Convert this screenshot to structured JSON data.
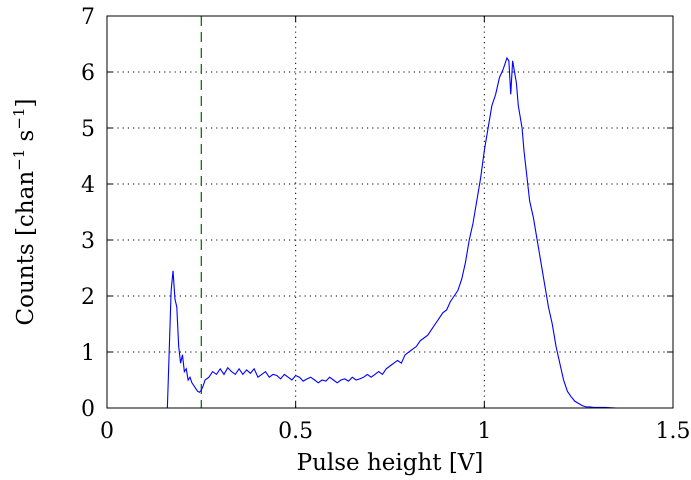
{
  "chart_data": {
    "type": "line",
    "title": "",
    "xlabel": "Pulse height [V]",
    "ylabel": "Counts [chan",
    "ylabel_parts": [
      "Counts [chan",
      "−1",
      " s",
      "−1",
      "]"
    ],
    "xlim": [
      0,
      1.5
    ],
    "ylim": [
      0,
      7
    ],
    "xticks": [
      0,
      0.5,
      1,
      1.5
    ],
    "xtick_labels": [
      "0",
      "0.5",
      "1",
      "1.5"
    ],
    "yticks": [
      0,
      1,
      2,
      3,
      4,
      5,
      6,
      7
    ],
    "ytick_labels": [
      "0",
      "1",
      "2",
      "3",
      "4",
      "5",
      "6",
      "7"
    ],
    "grid": "dotted",
    "threshold_x": 0.25,
    "colors": {
      "series": "#0000ff",
      "threshold": "#008000",
      "axes": "#000000"
    },
    "series": [
      {
        "x": [
          0.0,
          0.16,
          0.17,
          0.175,
          0.18,
          0.185,
          0.19,
          0.195,
          0.2,
          0.205,
          0.21,
          0.215,
          0.22,
          0.225,
          0.23,
          0.235,
          0.24,
          0.245,
          0.25,
          0.255,
          0.26,
          0.27,
          0.28,
          0.29,
          0.3,
          0.31,
          0.32,
          0.33,
          0.34,
          0.35,
          0.36,
          0.37,
          0.38,
          0.39,
          0.4,
          0.41,
          0.42,
          0.43,
          0.44,
          0.45,
          0.46,
          0.47,
          0.48,
          0.49,
          0.5,
          0.51,
          0.52,
          0.53,
          0.54,
          0.55,
          0.56,
          0.57,
          0.58,
          0.59,
          0.6,
          0.61,
          0.62,
          0.63,
          0.64,
          0.65,
          0.66,
          0.67,
          0.68,
          0.69,
          0.7,
          0.71,
          0.72,
          0.73,
          0.74,
          0.75,
          0.76,
          0.77,
          0.78,
          0.79,
          0.8,
          0.81,
          0.82,
          0.83,
          0.84,
          0.85,
          0.86,
          0.87,
          0.88,
          0.89,
          0.9,
          0.91,
          0.92,
          0.93,
          0.94,
          0.95,
          0.96,
          0.97,
          0.98,
          0.99,
          1.0,
          1.01,
          1.02,
          1.03,
          1.04,
          1.05,
          1.06,
          1.065,
          1.07,
          1.075,
          1.08,
          1.085,
          1.09,
          1.095,
          1.1,
          1.105,
          1.11,
          1.115,
          1.12,
          1.13,
          1.14,
          1.15,
          1.16,
          1.17,
          1.18,
          1.19,
          1.2,
          1.21,
          1.22,
          1.23,
          1.24,
          1.25,
          1.26,
          1.27,
          1.28,
          1.29,
          1.3,
          1.32,
          1.35,
          1.4,
          1.45,
          1.5
        ],
        "y": [
          0.0,
          0.0,
          2.1,
          2.45,
          1.95,
          1.8,
          1.1,
          0.8,
          0.95,
          0.65,
          0.7,
          0.5,
          0.55,
          0.45,
          0.4,
          0.35,
          0.3,
          0.28,
          0.32,
          0.4,
          0.5,
          0.55,
          0.65,
          0.6,
          0.7,
          0.6,
          0.72,
          0.65,
          0.6,
          0.7,
          0.6,
          0.68,
          0.62,
          0.7,
          0.55,
          0.6,
          0.65,
          0.55,
          0.6,
          0.58,
          0.52,
          0.6,
          0.55,
          0.5,
          0.58,
          0.55,
          0.48,
          0.52,
          0.55,
          0.5,
          0.45,
          0.5,
          0.48,
          0.55,
          0.5,
          0.45,
          0.5,
          0.52,
          0.48,
          0.55,
          0.5,
          0.52,
          0.55,
          0.6,
          0.55,
          0.6,
          0.65,
          0.6,
          0.7,
          0.75,
          0.8,
          0.85,
          0.8,
          0.95,
          1.0,
          1.05,
          1.1,
          1.2,
          1.25,
          1.3,
          1.4,
          1.5,
          1.6,
          1.7,
          1.75,
          1.9,
          2.0,
          2.1,
          2.3,
          2.6,
          3.0,
          3.3,
          3.7,
          4.1,
          4.6,
          5.0,
          5.4,
          5.6,
          5.9,
          6.05,
          6.25,
          6.2,
          5.6,
          6.2,
          6.0,
          5.8,
          5.4,
          5.2,
          5.0,
          4.6,
          4.3,
          4.0,
          3.7,
          3.4,
          3.0,
          2.6,
          2.2,
          1.8,
          1.5,
          1.1,
          0.8,
          0.5,
          0.3,
          0.2,
          0.12,
          0.08,
          0.04,
          0.02,
          0.02,
          0.01,
          0.01,
          0.01,
          0.0,
          0.0,
          0.0,
          0.0
        ]
      }
    ]
  }
}
